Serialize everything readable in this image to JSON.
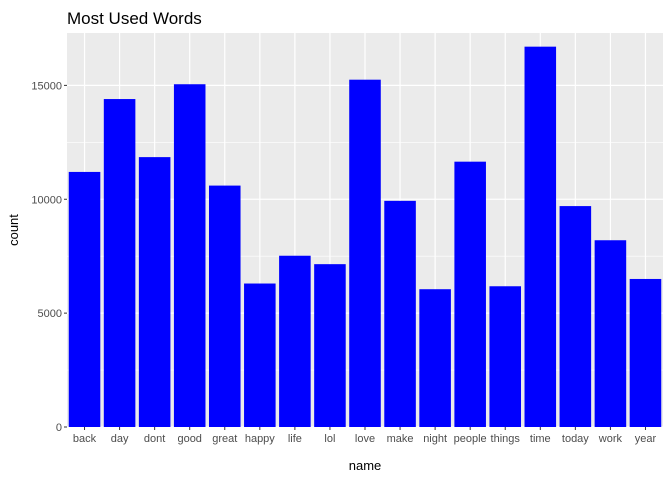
{
  "chart_data": {
    "type": "bar",
    "title": "Most Used Words",
    "xlabel": "name",
    "ylabel": "count",
    "categories": [
      "back",
      "day",
      "dont",
      "good",
      "great",
      "happy",
      "life",
      "lol",
      "love",
      "make",
      "night",
      "people",
      "things",
      "time",
      "today",
      "work",
      "year"
    ],
    "values": [
      11200,
      14400,
      11850,
      15050,
      10600,
      6300,
      7520,
      7150,
      15250,
      9930,
      6050,
      11650,
      6180,
      16700,
      9700,
      8200,
      6500
    ],
    "ylim": [
      0,
      17300
    ],
    "yticks": [
      0,
      5000,
      10000,
      15000
    ],
    "ytick_labels": [
      "0",
      "5000",
      "10000",
      "15000"
    ],
    "grid": true,
    "legend": "none",
    "bar_color": "#0000FF",
    "panel_background": "#EBEBEB",
    "grid_color": "#FFFFFF"
  }
}
